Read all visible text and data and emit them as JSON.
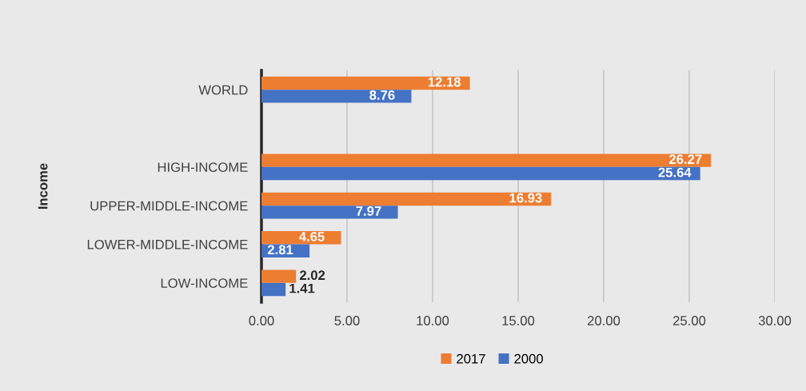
{
  "chart_data": {
    "type": "bar",
    "orientation": "horizontal",
    "ylabel": "Income",
    "categories": [
      "WORLD",
      null,
      "HIGH-INCOME",
      "UPPER-MIDDLE-INCOME",
      "LOWER-MIDDLE-INCOME",
      "LOW-INCOME"
    ],
    "series": [
      {
        "name": "2017",
        "color": "#ed7d31",
        "values": [
          12.18,
          null,
          26.27,
          16.93,
          4.65,
          2.02
        ]
      },
      {
        "name": "2000",
        "color": "#4472c4",
        "values": [
          8.76,
          null,
          25.64,
          7.97,
          2.81,
          1.41
        ]
      }
    ],
    "xlim": [
      0,
      30
    ],
    "xticks": [
      {
        "value": 0,
        "label": "0.00"
      },
      {
        "value": 5,
        "label": "5.00"
      },
      {
        "value": 10,
        "label": "10.00"
      },
      {
        "value": 15,
        "label": "15.00"
      },
      {
        "value": 20,
        "label": "20.00"
      },
      {
        "value": 25,
        "label": "25.00"
      },
      {
        "value": 30,
        "label": "30.00"
      }
    ],
    "grid": "x",
    "legend": "bottom",
    "data_labels": true
  }
}
